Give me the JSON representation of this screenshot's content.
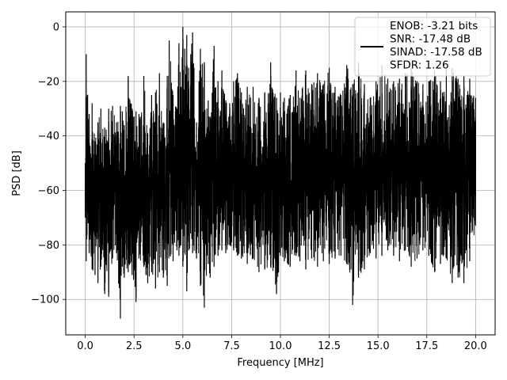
{
  "chart_data": {
    "type": "line",
    "xlabel": "Frequency [MHz]",
    "ylabel": "PSD [dB]",
    "xlim": [
      -1.0,
      21.0
    ],
    "ylim": [
      -113.0,
      5.5
    ],
    "xticks": [
      0.0,
      2.5,
      5.0,
      7.5,
      10.0,
      12.5,
      15.0,
      17.5,
      20.0
    ],
    "xtick_labels": [
      "0.0",
      "2.5",
      "5.0",
      "7.5",
      "10.0",
      "12.5",
      "15.0",
      "17.5",
      "20.0"
    ],
    "yticks": [
      0,
      -20,
      -40,
      -60,
      -80,
      -100
    ],
    "ytick_labels": [
      "0",
      "−20",
      "−40",
      "−60",
      "−80",
      "−100"
    ],
    "grid": true,
    "legend_position": "top-right",
    "legend_lines": [
      "ENOB: -3.21 bits",
      "SNR: -17.48 dB",
      "SINAD: -17.58 dB",
      "SFDR: 1.26"
    ],
    "series": [
      {
        "color": "#000000",
        "x": [
          0.0,
          0.05,
          0.2,
          0.35,
          0.5,
          0.65,
          0.8,
          1.0,
          1.2,
          1.4,
          1.6,
          1.8,
          1.9,
          2.0,
          2.2,
          2.4,
          2.6,
          2.75,
          3.0,
          3.2,
          3.4,
          3.6,
          3.8,
          4.0,
          4.2,
          4.3,
          4.5,
          4.7,
          4.8,
          4.9,
          5.0,
          5.1,
          5.2,
          5.3,
          5.5,
          5.7,
          5.9,
          6.1,
          6.3,
          6.4,
          6.6,
          6.8,
          7.0,
          7.2,
          7.4,
          7.6,
          7.8,
          8.0,
          8.3,
          8.6,
          8.9,
          9.2,
          9.5,
          9.8,
          10.0,
          10.2,
          10.5,
          10.8,
          11.0,
          11.3,
          11.6,
          11.9,
          12.2,
          12.5,
          12.8,
          13.1,
          13.4,
          13.7,
          14.0,
          14.3,
          14.6,
          14.9,
          15.2,
          15.5,
          15.8,
          16.1,
          16.4,
          16.7,
          17.0,
          17.3,
          17.6,
          17.9,
          18.2,
          18.5,
          18.8,
          19.1,
          19.4,
          19.7,
          20.0
        ],
        "peak": [
          -50,
          -10,
          -32,
          -28,
          -42,
          -35,
          -30,
          -37,
          -30,
          -29,
          -35,
          -29,
          -31,
          -36,
          -18,
          -30,
          -31,
          -32,
          -18,
          -39,
          -25,
          -24,
          -17,
          -35,
          -18,
          -5,
          -25,
          -30,
          -6,
          -22,
          0,
          -8,
          -3,
          -15,
          -2,
          -35,
          -8,
          -13,
          -27,
          -33,
          -7,
          -20,
          -16,
          -27,
          -28,
          -20,
          -17,
          -24,
          -22,
          -22,
          -26,
          -24,
          -13,
          -26,
          -24,
          -26,
          -25,
          -16,
          -26,
          -16,
          -21,
          -17,
          -21,
          -15,
          -22,
          -25,
          -14,
          -21,
          -13,
          -21,
          -26,
          -20,
          -14,
          -19,
          -20,
          -19,
          -17,
          -15,
          -20,
          -21,
          -20,
          -16,
          -20,
          -15,
          -15,
          -19,
          -18,
          -19,
          -26
        ],
        "trough": [
          -70,
          -86,
          -83,
          -89,
          -91,
          -94,
          -88,
          -98,
          -99,
          -85,
          -83,
          -107,
          -88,
          -92,
          -90,
          -91,
          -101,
          -85,
          -88,
          -94,
          -90,
          -96,
          -90,
          -92,
          -95,
          -84,
          -86,
          -82,
          -84,
          -80,
          -88,
          -83,
          -97,
          -82,
          -83,
          -85,
          -95,
          -103,
          -87,
          -92,
          -88,
          -84,
          -82,
          -83,
          -80,
          -82,
          -84,
          -85,
          -87,
          -85,
          -90,
          -89,
          -88,
          -98,
          -84,
          -86,
          -88,
          -84,
          -86,
          -89,
          -85,
          -88,
          -86,
          -87,
          -85,
          -84,
          -87,
          -102,
          -92,
          -89,
          -83,
          -85,
          -84,
          -82,
          -84,
          -86,
          -82,
          -88,
          -85,
          -82,
          -84,
          -90,
          -87,
          -85,
          -94,
          -92,
          -94,
          -86,
          -73
        ]
      }
    ]
  }
}
